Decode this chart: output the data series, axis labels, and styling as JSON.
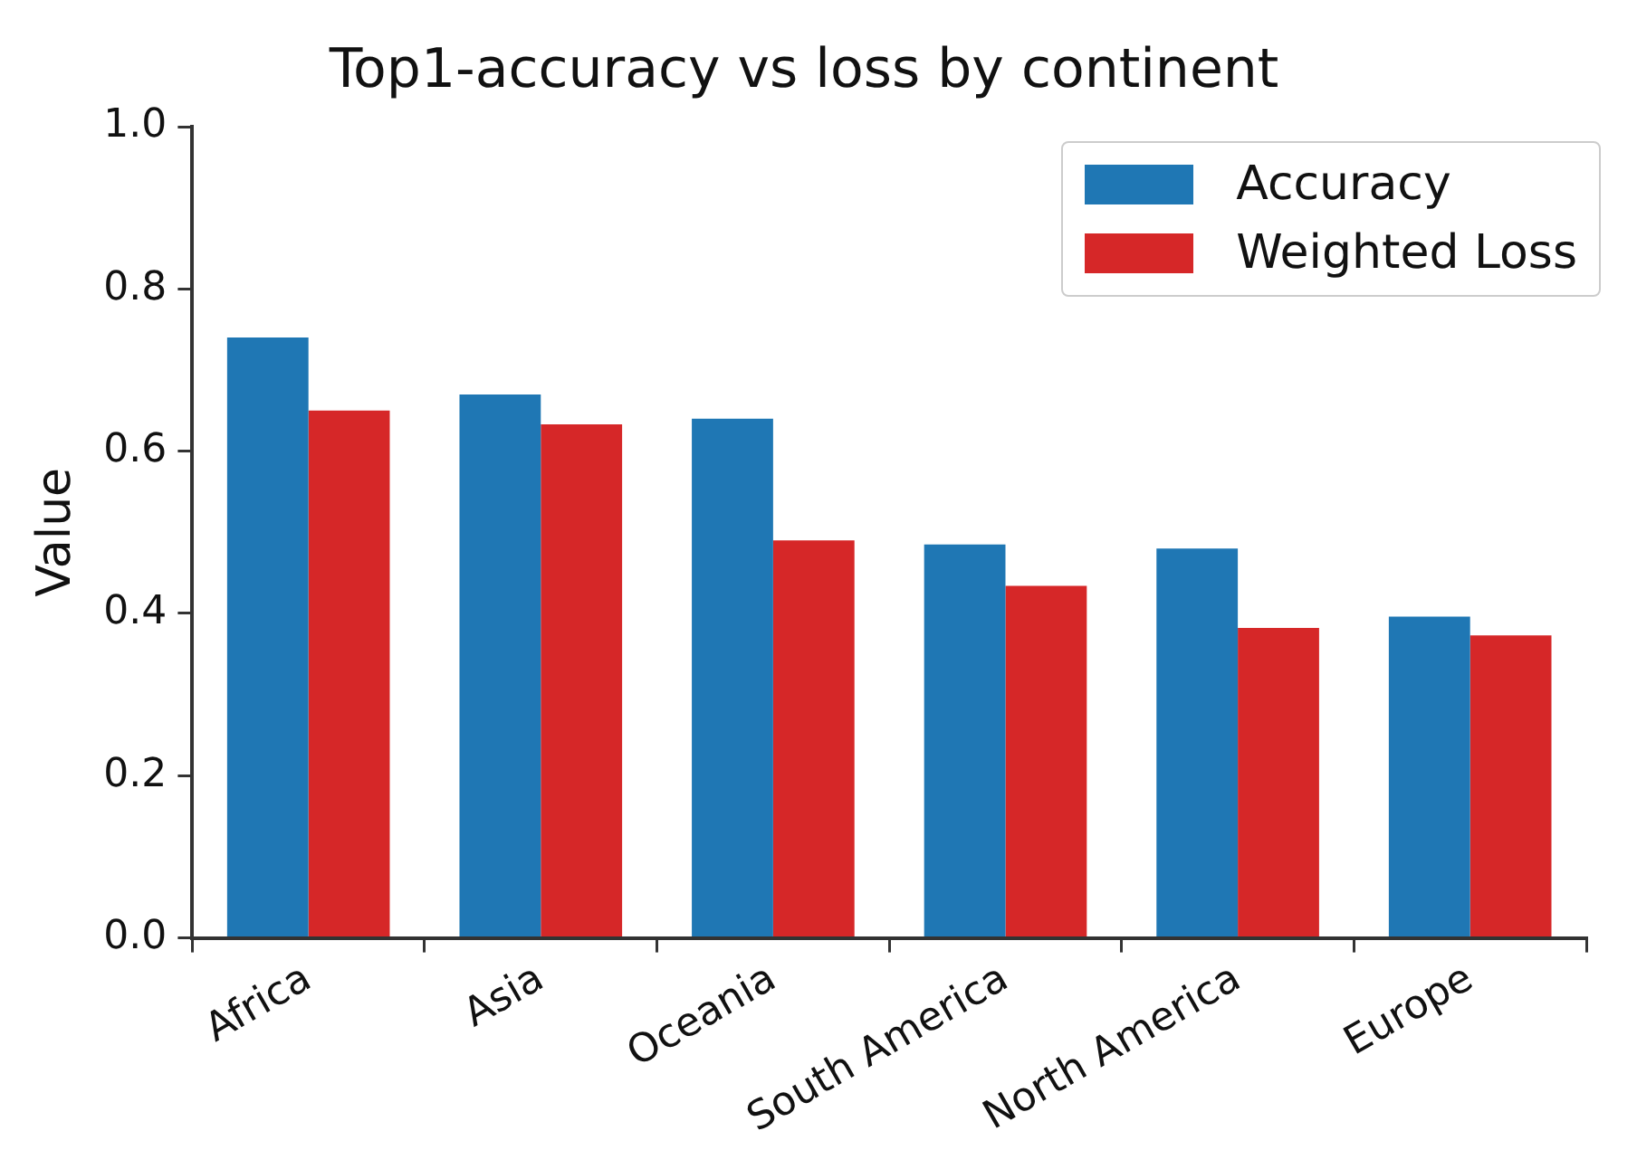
{
  "chart_data": {
    "type": "bar",
    "title": "Top1-accuracy vs loss by continent",
    "ylabel": "Value",
    "categories": [
      "Africa",
      "Asia",
      "Oceania",
      "South America",
      "North America",
      "Europe"
    ],
    "series": [
      {
        "name": "Accuracy",
        "color": "#1f77b4",
        "values": [
          0.74,
          0.67,
          0.64,
          0.485,
          0.48,
          0.396
        ]
      },
      {
        "name": "Weighted Loss",
        "color": "#d62728",
        "values": [
          0.65,
          0.633,
          0.49,
          0.434,
          0.382,
          0.373
        ]
      }
    ],
    "ylim": [
      0,
      1
    ],
    "yticks": [
      {
        "value": 0,
        "label": "0.0"
      },
      0.2,
      0.4,
      0.6,
      0.8,
      {
        "value": 1,
        "label": "1.0"
      }
    ],
    "grid": false,
    "legend": "top right"
  }
}
